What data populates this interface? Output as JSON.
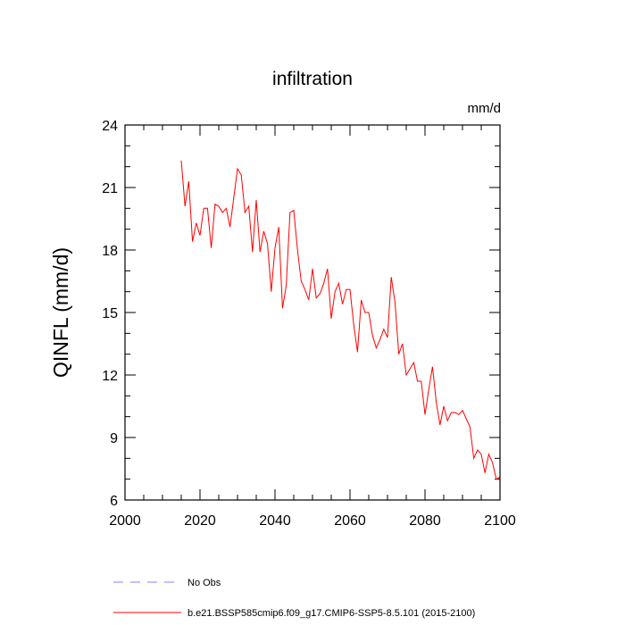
{
  "chart_data": {
    "type": "line",
    "title": "infiltration",
    "units_label": "mm/d",
    "ylabel": "QINFL  (mm/d)",
    "xlabel": "",
    "xlim": [
      2000,
      2100
    ],
    "ylim": [
      6,
      24
    ],
    "x_ticks": [
      2000,
      2020,
      2040,
      2060,
      2080,
      2100
    ],
    "y_ticks": [
      6,
      9,
      12,
      15,
      18,
      21,
      24
    ],
    "grid": false,
    "legend_position": "bottom",
    "series": [
      {
        "name": "No Obs",
        "color": "#8080ff",
        "dash": "dashed",
        "x": [],
        "y": []
      },
      {
        "name": "b.e21.BSSP585cmip6.f09_g17.CMIP6-SSP5-8.5.101 (2015-2100)",
        "color": "#ff0000",
        "dash": "solid",
        "x": [
          2015,
          2016,
          2017,
          2018,
          2019,
          2020,
          2021,
          2022,
          2023,
          2024,
          2025,
          2026,
          2027,
          2028,
          2029,
          2030,
          2031,
          2032,
          2033,
          2034,
          2035,
          2036,
          2037,
          2038,
          2039,
          2040,
          2041,
          2042,
          2043,
          2044,
          2045,
          2046,
          2047,
          2048,
          2049,
          2050,
          2051,
          2052,
          2053,
          2054,
          2055,
          2056,
          2057,
          2058,
          2059,
          2060,
          2061,
          2062,
          2063,
          2064,
          2065,
          2066,
          2067,
          2068,
          2069,
          2070,
          2071,
          2072,
          2073,
          2074,
          2075,
          2076,
          2077,
          2078,
          2079,
          2080,
          2081,
          2082,
          2083,
          2084,
          2085,
          2086,
          2087,
          2088,
          2089,
          2090,
          2091,
          2092,
          2093,
          2094,
          2095,
          2096,
          2097,
          2098,
          2099,
          2100
        ],
        "y": [
          22.3,
          20.1,
          21.3,
          18.4,
          19.3,
          18.7,
          20.0,
          20.0,
          18.1,
          20.2,
          20.1,
          19.8,
          20.0,
          19.1,
          20.5,
          21.9,
          21.6,
          19.8,
          20.1,
          17.9,
          20.4,
          17.9,
          18.9,
          18.3,
          16.0,
          18.1,
          19.1,
          15.2,
          16.3,
          19.8,
          19.9,
          18.0,
          16.5,
          16.1,
          15.6,
          17.1,
          15.7,
          15.9,
          16.4,
          17.1,
          14.7,
          16.0,
          16.4,
          15.4,
          16.1,
          16.1,
          14.4,
          13.1,
          15.6,
          15.0,
          15.0,
          13.9,
          13.3,
          13.7,
          14.2,
          13.8,
          16.7,
          15.5,
          13.0,
          13.5,
          12.0,
          12.3,
          12.6,
          11.7,
          11.7,
          10.1,
          11.3,
          12.4,
          10.7,
          9.6,
          10.5,
          9.8,
          10.2,
          10.2,
          10.1,
          10.3,
          9.9,
          9.5,
          8.0,
          8.4,
          8.2,
          7.3,
          8.2,
          7.8,
          7.0,
          7.1
        ]
      }
    ]
  }
}
